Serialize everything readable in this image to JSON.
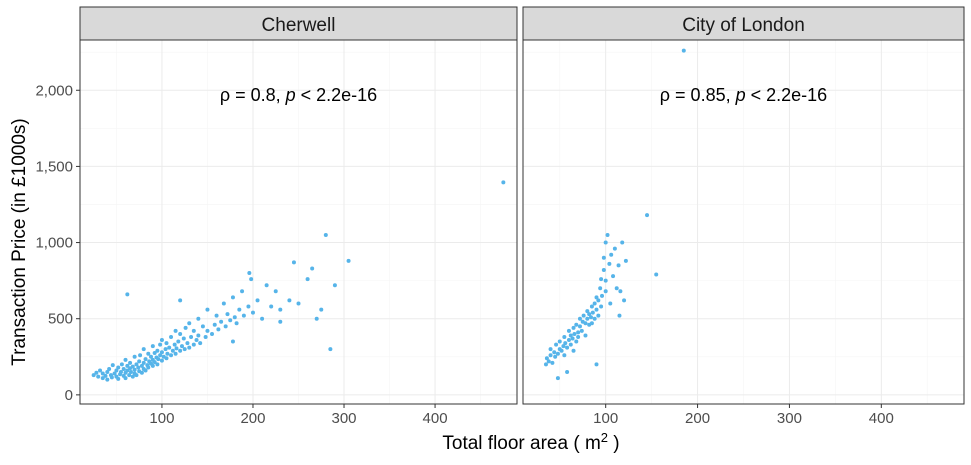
{
  "chart_data": {
    "type": "scatter",
    "xlabel": "Total floor area ( m",
    "xlabel_superscript": "2",
    "xlabel_close": " )",
    "ylabel": "Transaction Price (in £1000s)",
    "xlim": [
      10,
      490
    ],
    "ylim": [
      -60,
      2330
    ],
    "x_ticks": [
      100,
      200,
      300,
      400
    ],
    "x_tick_labels": [
      "100",
      "200",
      "300",
      "400"
    ],
    "y_ticks": [
      0,
      500,
      1000,
      1500,
      2000
    ],
    "y_tick_labels": [
      "0",
      "500",
      "1,000",
      "1,500",
      "2,000"
    ],
    "grid": true,
    "point_color": "#56B4E9",
    "panels": [
      {
        "name": "Cherwell",
        "annotation": {
          "rho_symbol": "ρ",
          "rho_value": " = 0.8, ",
          "p_symbol": "p",
          "p_value": " < 2.2e-16"
        },
        "points": [
          [
            25,
            130
          ],
          [
            28,
            145
          ],
          [
            30,
            120
          ],
          [
            32,
            160
          ],
          [
            35,
            110
          ],
          [
            35,
            140
          ],
          [
            38,
            125
          ],
          [
            40,
            100
          ],
          [
            40,
            150
          ],
          [
            42,
            170
          ],
          [
            44,
            130
          ],
          [
            45,
            115
          ],
          [
            46,
            195
          ],
          [
            48,
            140
          ],
          [
            50,
            120
          ],
          [
            50,
            160
          ],
          [
            52,
            105
          ],
          [
            52,
            180
          ],
          [
            54,
            135
          ],
          [
            55,
            150
          ],
          [
            56,
            200
          ],
          [
            58,
            125
          ],
          [
            58,
            170
          ],
          [
            60,
            110
          ],
          [
            60,
            145
          ],
          [
            60,
            230
          ],
          [
            62,
            160
          ],
          [
            62,
            190
          ],
          [
            64,
            130
          ],
          [
            65,
            175
          ],
          [
            65,
            210
          ],
          [
            66,
            150
          ],
          [
            68,
            120
          ],
          [
            68,
            185
          ],
          [
            70,
            140
          ],
          [
            70,
            165
          ],
          [
            70,
            250
          ],
          [
            72,
            200
          ],
          [
            72,
            130
          ],
          [
            74,
            180
          ],
          [
            75,
            155
          ],
          [
            75,
            220
          ],
          [
            76,
            260
          ],
          [
            78,
            190
          ],
          [
            78,
            145
          ],
          [
            80,
            170
          ],
          [
            80,
            210
          ],
          [
            80,
            300
          ],
          [
            82,
            235
          ],
          [
            82,
            160
          ],
          [
            84,
            195
          ],
          [
            85,
            180
          ],
          [
            85,
            270
          ],
          [
            86,
            220
          ],
          [
            88,
            205
          ],
          [
            88,
            250
          ],
          [
            90,
            190
          ],
          [
            90,
            230
          ],
          [
            90,
            320
          ],
          [
            92,
            215
          ],
          [
            92,
            275
          ],
          [
            94,
            245
          ],
          [
            95,
            200
          ],
          [
            95,
            290
          ],
          [
            96,
            235
          ],
          [
            98,
            260
          ],
          [
            98,
            330
          ],
          [
            100,
            225
          ],
          [
            100,
            280
          ],
          [
            100,
            360
          ],
          [
            102,
            250
          ],
          [
            104,
            300
          ],
          [
            105,
            240
          ],
          [
            105,
            340
          ],
          [
            106,
            270
          ],
          [
            108,
            310
          ],
          [
            110,
            260
          ],
          [
            110,
            380
          ],
          [
            112,
            290
          ],
          [
            114,
            330
          ],
          [
            115,
            270
          ],
          [
            115,
            420
          ],
          [
            116,
            305
          ],
          [
            118,
            350
          ],
          [
            120,
            290
          ],
          [
            120,
            400
          ],
          [
            122,
            320
          ],
          [
            124,
            370
          ],
          [
            125,
            300
          ],
          [
            126,
            440
          ],
          [
            128,
            340
          ],
          [
            130,
            310
          ],
          [
            130,
            470
          ],
          [
            132,
            380
          ],
          [
            135,
            330
          ],
          [
            135,
            420
          ],
          [
            138,
            360
          ],
          [
            140,
            390
          ],
          [
            140,
            500
          ],
          [
            142,
            340
          ],
          [
            145,
            450
          ],
          [
            148,
            380
          ],
          [
            150,
            420
          ],
          [
            150,
            560
          ],
          [
            155,
            400
          ],
          [
            158,
            460
          ],
          [
            160,
            520
          ],
          [
            162,
            430
          ],
          [
            165,
            480
          ],
          [
            168,
            600
          ],
          [
            170,
            450
          ],
          [
            172,
            530
          ],
          [
            175,
            490
          ],
          [
            178,
            640
          ],
          [
            180,
            510
          ],
          [
            182,
            470
          ],
          [
            185,
            560
          ],
          [
            188,
            680
          ],
          [
            190,
            520
          ],
          [
            195,
            580
          ],
          [
            198,
            760
          ],
          [
            200,
            540
          ],
          [
            205,
            620
          ],
          [
            210,
            500
          ],
          [
            215,
            720
          ],
          [
            220,
            580
          ],
          [
            225,
            680
          ],
          [
            230,
            560
          ],
          [
            240,
            620
          ],
          [
            245,
            870
          ],
          [
            250,
            600
          ],
          [
            260,
            760
          ],
          [
            265,
            830
          ],
          [
            270,
            500
          ],
          [
            275,
            560
          ],
          [
            280,
            1050
          ],
          [
            285,
            300
          ],
          [
            290,
            720
          ],
          [
            305,
            880
          ],
          [
            475,
            1395
          ],
          [
            62,
            660
          ],
          [
            120,
            620
          ],
          [
            178,
            350
          ],
          [
            230,
            480
          ],
          [
            196,
            800
          ]
        ]
      },
      {
        "name": "City of London",
        "annotation": {
          "rho_symbol": "ρ",
          "rho_value": " = 0.85, ",
          "p_symbol": "p",
          "p_value": " < 2.2e-16"
        },
        "points": [
          [
            35,
            200
          ],
          [
            36,
            240
          ],
          [
            38,
            220
          ],
          [
            40,
            260
          ],
          [
            40,
            300
          ],
          [
            42,
            210
          ],
          [
            44,
            280
          ],
          [
            45,
            250
          ],
          [
            46,
            330
          ],
          [
            48,
            270
          ],
          [
            48,
            110
          ],
          [
            50,
            300
          ],
          [
            50,
            350
          ],
          [
            52,
            290
          ],
          [
            54,
            320
          ],
          [
            55,
            260
          ],
          [
            55,
            380
          ],
          [
            56,
            340
          ],
          [
            58,
            310
          ],
          [
            60,
            360
          ],
          [
            60,
            420
          ],
          [
            62,
            330
          ],
          [
            62,
            390
          ],
          [
            64,
            370
          ],
          [
            65,
            440
          ],
          [
            66,
            400
          ],
          [
            68,
            350
          ],
          [
            68,
            460
          ],
          [
            70,
            410
          ],
          [
            70,
            380
          ],
          [
            72,
            450
          ],
          [
            72,
            500
          ],
          [
            74,
            420
          ],
          [
            75,
            480
          ],
          [
            76,
            520
          ],
          [
            78,
            470
          ],
          [
            78,
            390
          ],
          [
            80,
            500
          ],
          [
            80,
            550
          ],
          [
            82,
            460
          ],
          [
            82,
            530
          ],
          [
            84,
            510
          ],
          [
            85,
            470
          ],
          [
            85,
            580
          ],
          [
            86,
            540
          ],
          [
            88,
            600
          ],
          [
            88,
            500
          ],
          [
            90,
            560
          ],
          [
            90,
            640
          ],
          [
            92,
            620
          ],
          [
            92,
            520
          ],
          [
            94,
            700
          ],
          [
            95,
            580
          ],
          [
            95,
            760
          ],
          [
            96,
            650
          ],
          [
            98,
            820
          ],
          [
            98,
            900
          ],
          [
            100,
            680
          ],
          [
            100,
            750
          ],
          [
            100,
            1000
          ],
          [
            102,
            1050
          ],
          [
            104,
            860
          ],
          [
            105,
            600
          ],
          [
            106,
            920
          ],
          [
            108,
            780
          ],
          [
            110,
            960
          ],
          [
            112,
            700
          ],
          [
            114,
            850
          ],
          [
            115,
            520
          ],
          [
            116,
            680
          ],
          [
            118,
            1000
          ],
          [
            120,
            620
          ],
          [
            122,
            880
          ],
          [
            145,
            1180
          ],
          [
            155,
            790
          ],
          [
            185,
            2260
          ],
          [
            90,
            200
          ],
          [
            65,
            290
          ],
          [
            58,
            150
          ]
        ]
      }
    ]
  }
}
